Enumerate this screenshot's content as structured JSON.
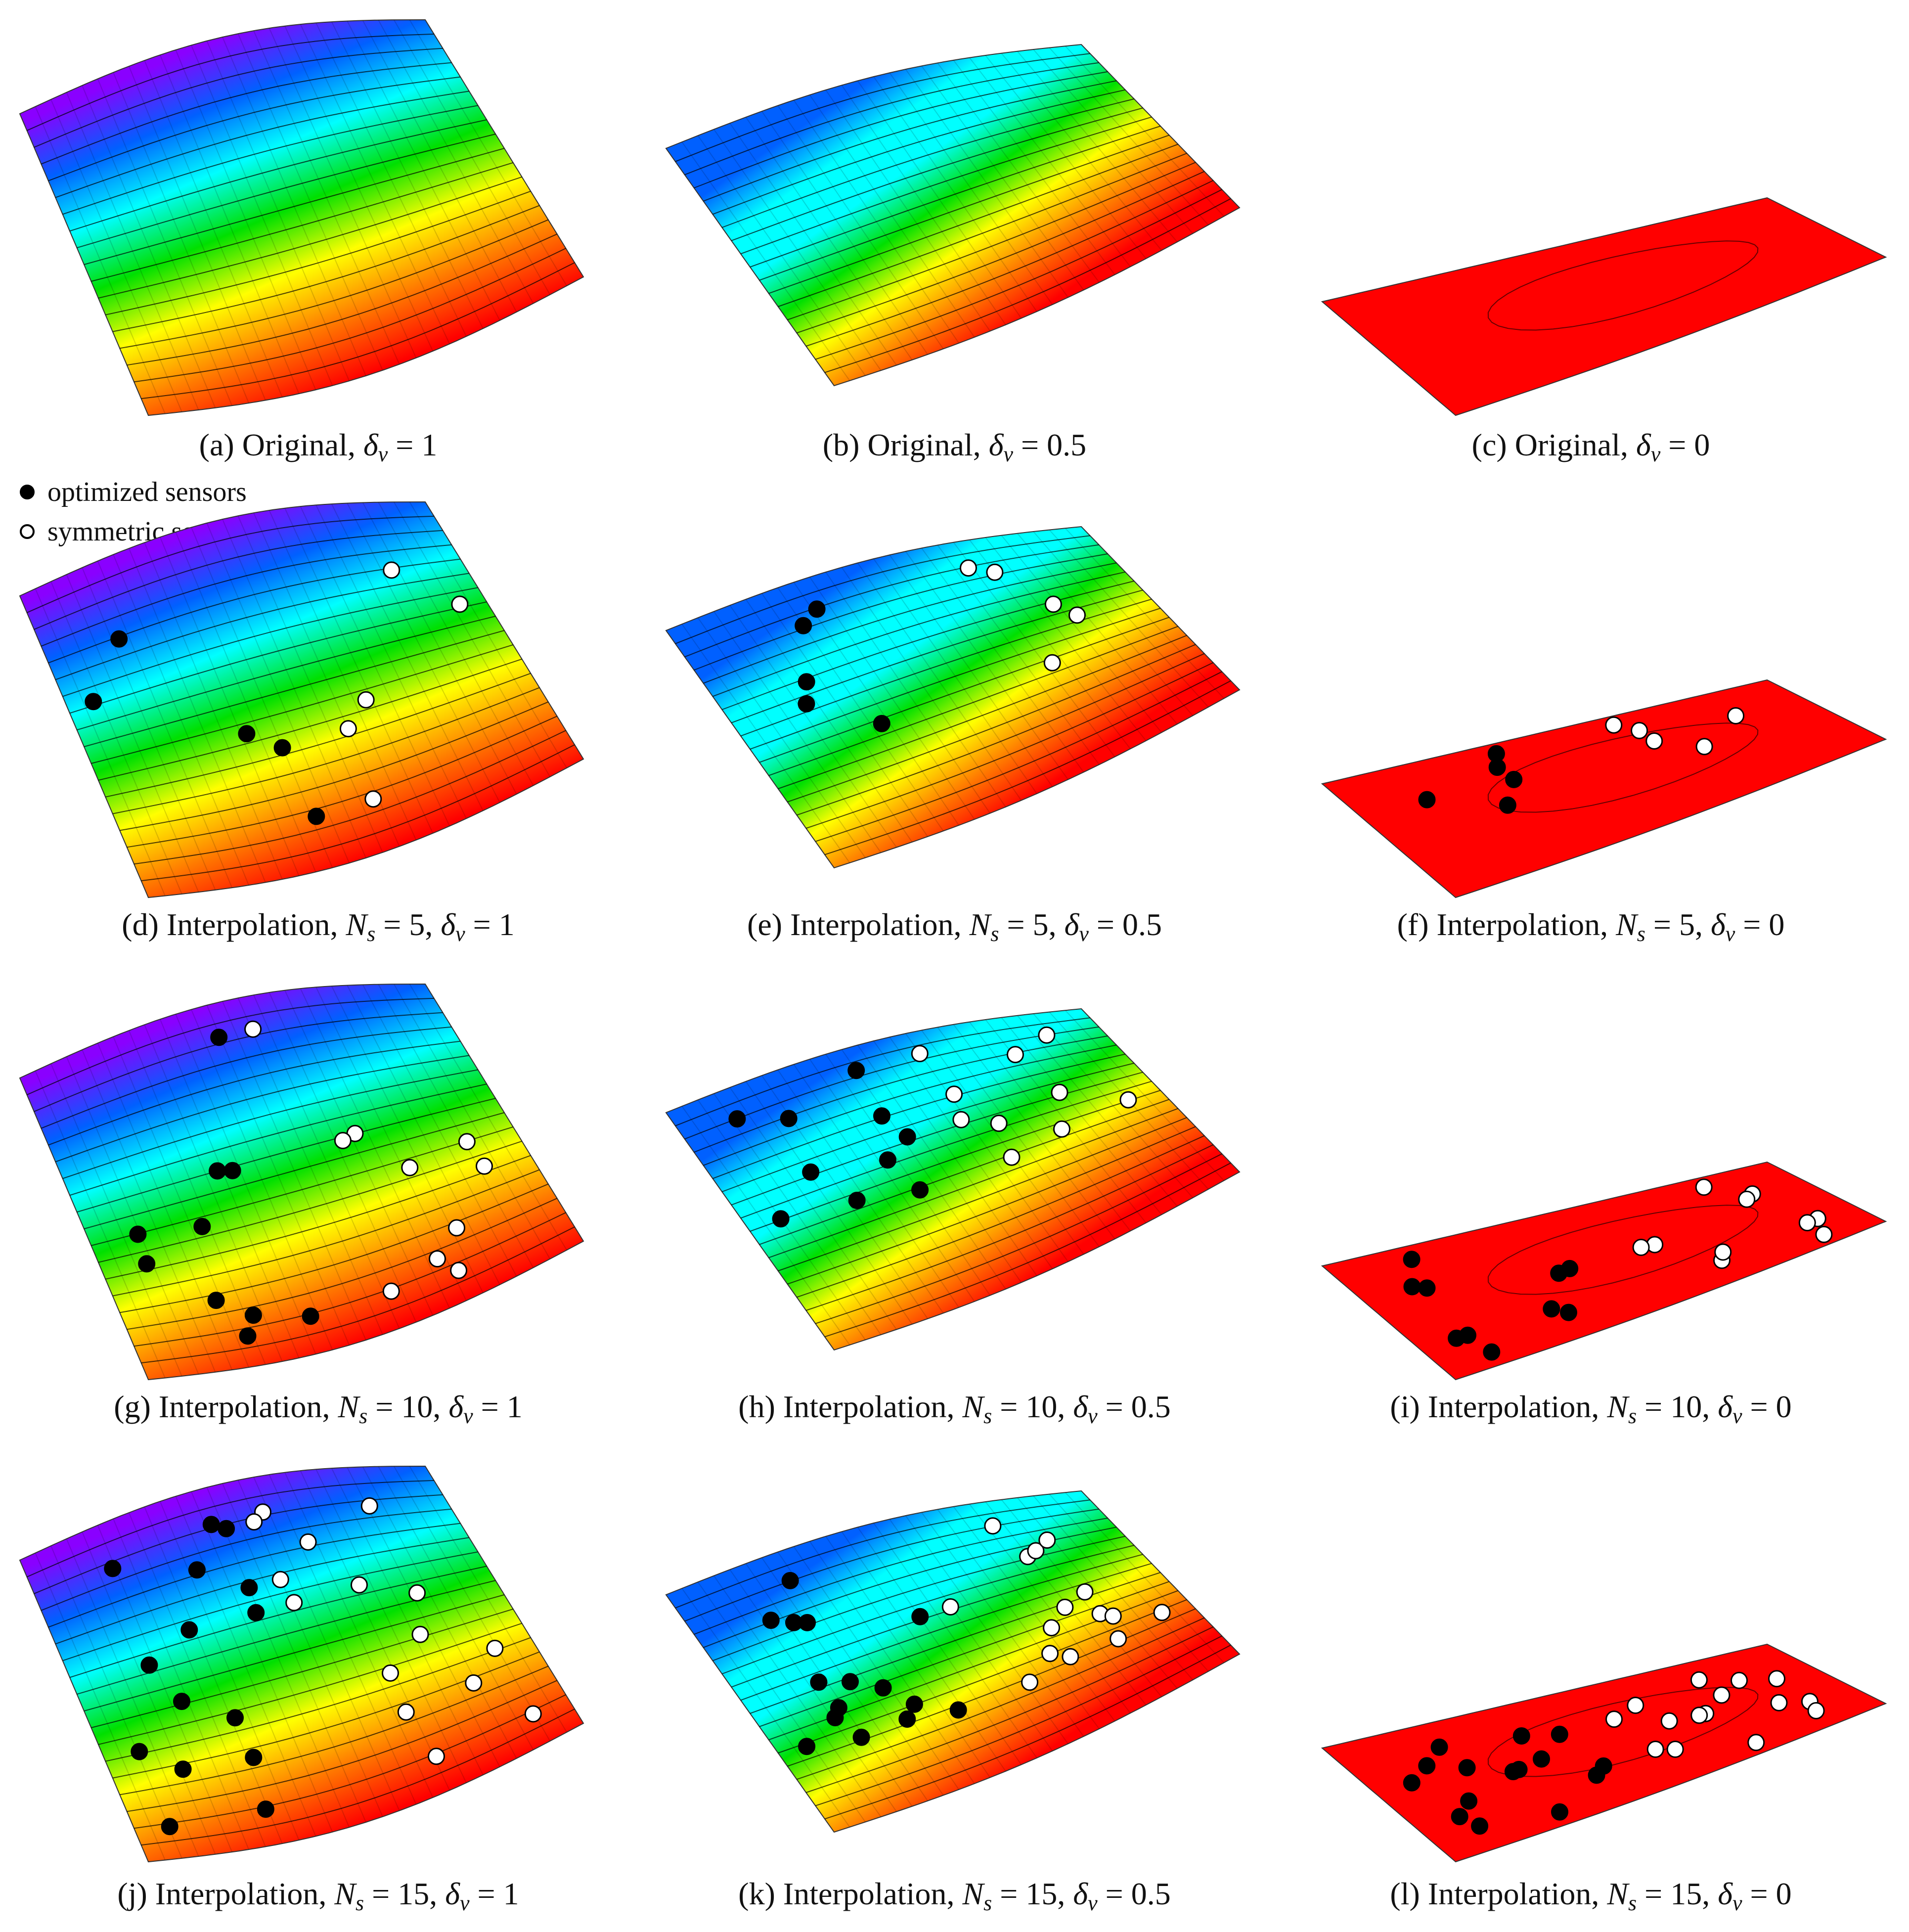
{
  "legend": {
    "filled_label": "optimized sensors",
    "open_label": "symmetric sensors",
    "filled_color": "#000000",
    "open_color": "#ffffff"
  },
  "colormap": [
    "#ff0000",
    "#ff7a00",
    "#ffff00",
    "#00e000",
    "#00ffff",
    "#0060ff",
    "#8a00ff"
  ],
  "panels": [
    {
      "tag": "(a)",
      "method": "Original",
      "ns": null,
      "dv": "1",
      "sensors": 0,
      "surface": "full-range"
    },
    {
      "tag": "(b)",
      "method": "Original",
      "ns": null,
      "dv": "0.5",
      "sensors": 0,
      "surface": "mid-range"
    },
    {
      "tag": "(c)",
      "method": "Original",
      "ns": null,
      "dv": "0",
      "sensors": 0,
      "surface": "flat"
    },
    {
      "tag": "(d)",
      "method": "Interpolation",
      "ns": "5",
      "dv": "1",
      "sensors": 5,
      "surface": "full-range"
    },
    {
      "tag": "(e)",
      "method": "Interpolation",
      "ns": "5",
      "dv": "0.5",
      "sensors": 5,
      "surface": "mid-range"
    },
    {
      "tag": "(f)",
      "method": "Interpolation",
      "ns": "5",
      "dv": "0",
      "sensors": 5,
      "surface": "flat"
    },
    {
      "tag": "(g)",
      "method": "Interpolation",
      "ns": "10",
      "dv": "1",
      "sensors": 10,
      "surface": "full-range"
    },
    {
      "tag": "(h)",
      "method": "Interpolation",
      "ns": "10",
      "dv": "0.5",
      "sensors": 10,
      "surface": "mid-range"
    },
    {
      "tag": "(i)",
      "method": "Interpolation",
      "ns": "10",
      "dv": "0",
      "sensors": 10,
      "surface": "flat"
    },
    {
      "tag": "(j)",
      "method": "Interpolation",
      "ns": "15",
      "dv": "1",
      "sensors": 15,
      "surface": "full-range"
    },
    {
      "tag": "(k)",
      "method": "Interpolation",
      "ns": "15",
      "dv": "0.5",
      "sensors": 15,
      "surface": "mid-range"
    },
    {
      "tag": "(l)",
      "method": "Interpolation",
      "ns": "15",
      "dv": "0",
      "sensors": 15,
      "surface": "flat"
    }
  ]
}
